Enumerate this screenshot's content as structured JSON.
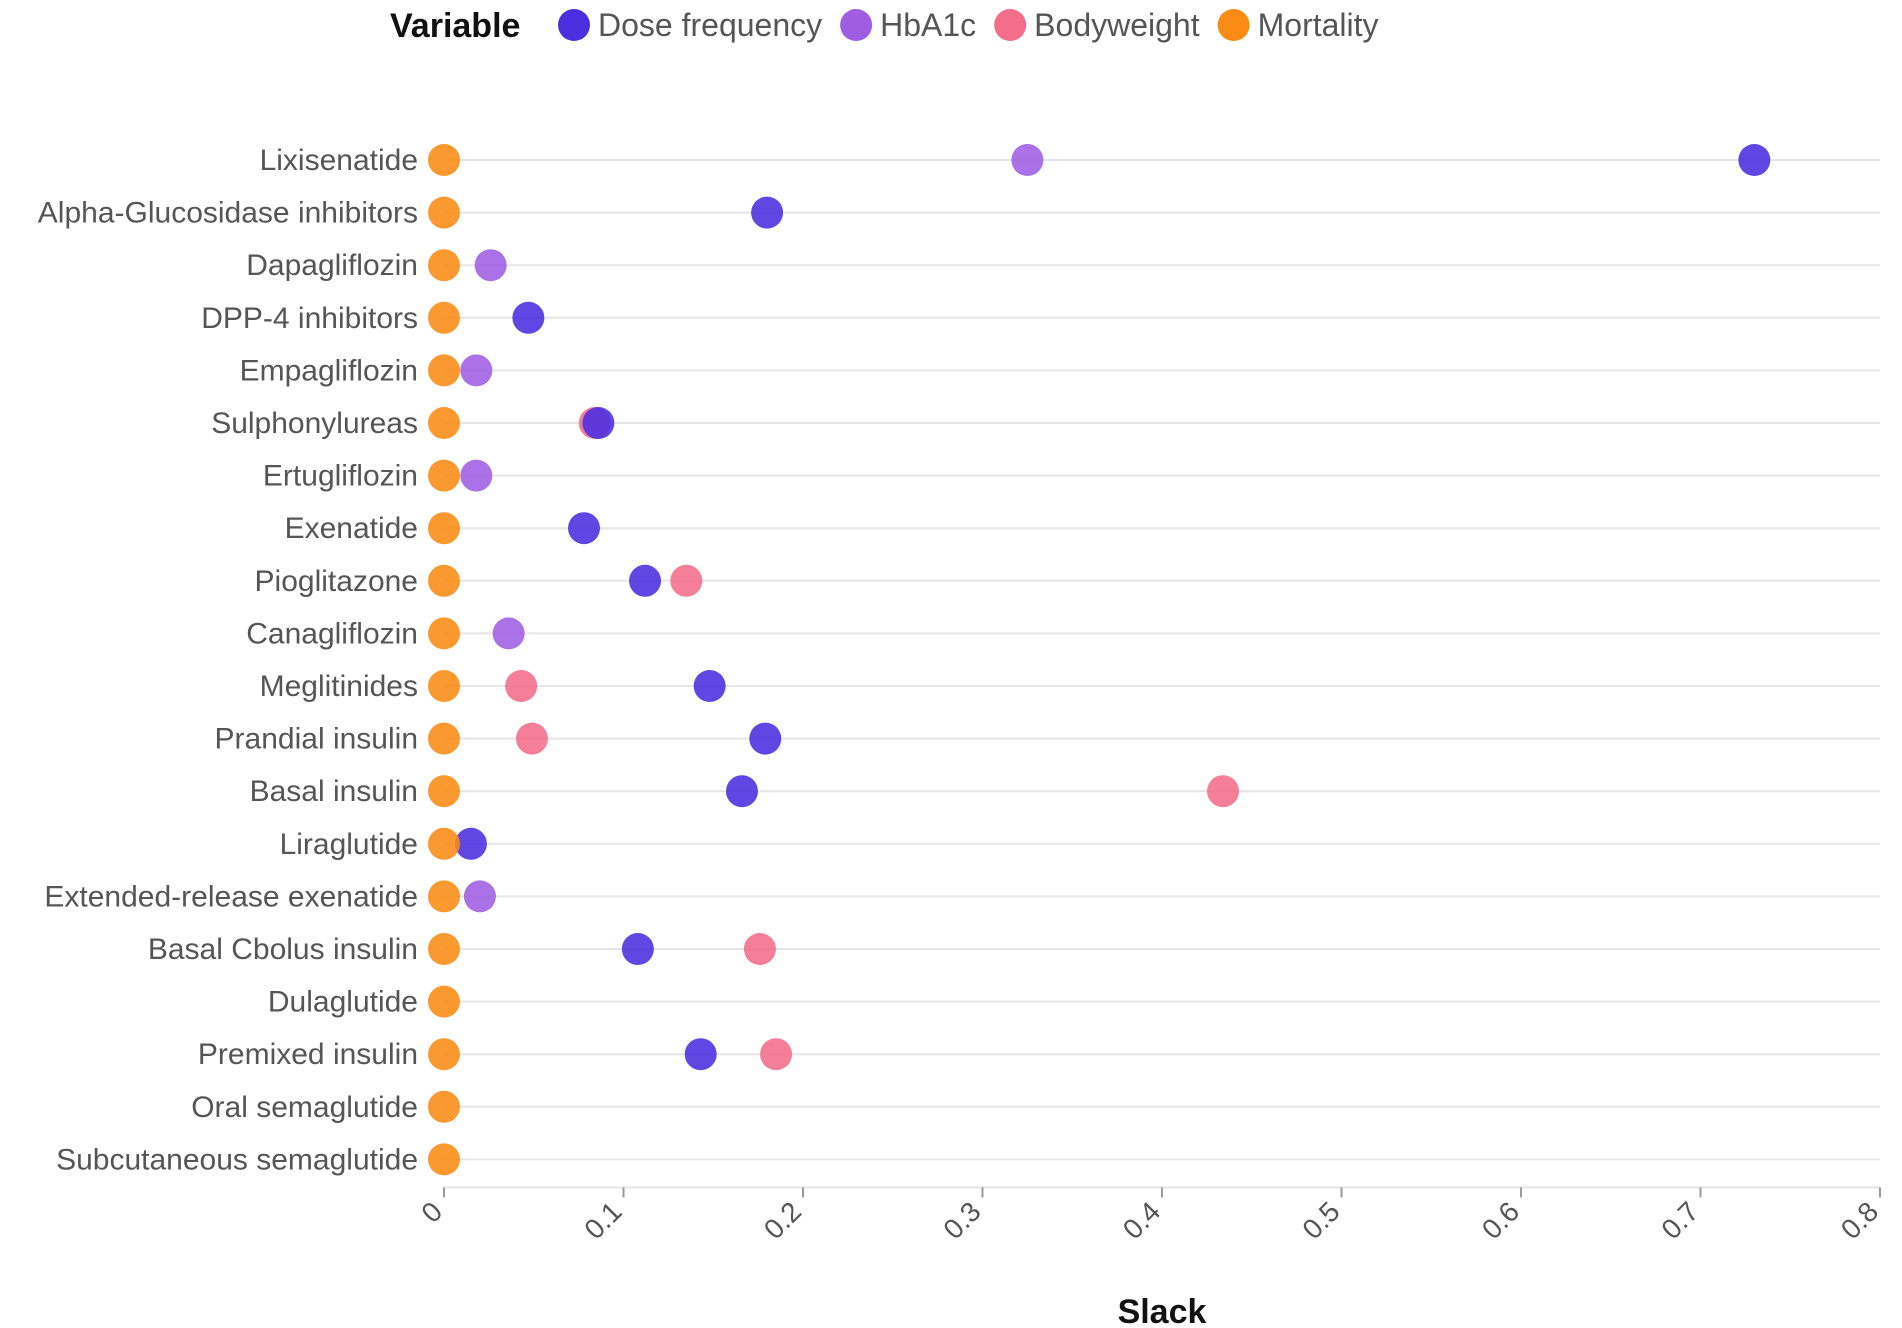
{
  "chart_data": {
    "type": "scatter",
    "orientation": "horizontal-dot",
    "title": "",
    "xlabel": "Slack",
    "ylabel": "",
    "xlim": [
      0,
      0.8
    ],
    "x_ticks": [
      0,
      0.1,
      0.2,
      0.3,
      0.4,
      0.5,
      0.6,
      0.7,
      0.8
    ],
    "x_tick_labels": [
      "0",
      "0.1",
      "0.2",
      "0.3",
      "0.4",
      "0.5",
      "0.6",
      "0.7",
      "0.8"
    ],
    "grid": true,
    "legend": {
      "title": "Variable",
      "placement": "top"
    },
    "categories": [
      "Lixisenatide",
      "Alpha-Glucosidase inhibitors",
      "Dapagliflozin",
      "DPP-4 inhibitors",
      "Empagliflozin",
      "Sulphonylureas",
      "Ertugliflozin",
      "Exenatide",
      "Pioglitazone",
      "Canagliflozin",
      "Meglitinides",
      "Prandial insulin",
      "Basal insulin",
      "Liraglutide",
      "Extended-release exenatide",
      "Basal Cbolus insulin",
      "Dulaglutide",
      "Premixed insulin",
      "Oral semaglutide",
      "Subcutaneous semaglutide"
    ],
    "series": [
      {
        "name": "Dose frequency",
        "color": "#4a2ee0",
        "values": [
          0.73,
          0.18,
          null,
          0.047,
          null,
          0.086,
          null,
          0.078,
          0.112,
          null,
          0.148,
          0.179,
          0.166,
          0.015,
          null,
          0.108,
          null,
          0.143,
          null,
          null
        ]
      },
      {
        "name": "HbA1c",
        "color": "#9f5de2",
        "values": [
          0.325,
          null,
          0.026,
          null,
          0.018,
          null,
          0.018,
          null,
          null,
          0.036,
          null,
          null,
          null,
          null,
          0.02,
          null,
          null,
          null,
          null,
          null
        ]
      },
      {
        "name": "Bodyweight",
        "color": "#f46d8a",
        "values": [
          null,
          null,
          null,
          null,
          null,
          0.084,
          null,
          null,
          0.135,
          null,
          0.043,
          0.049,
          0.434,
          null,
          null,
          0.176,
          null,
          0.185,
          null,
          null
        ]
      },
      {
        "name": "Mortality",
        "color": "#fb8b14",
        "values": [
          0,
          0,
          0,
          0,
          0,
          0,
          0,
          0,
          0,
          0,
          0,
          0,
          0,
          0,
          0,
          0,
          0,
          0,
          0,
          0
        ]
      }
    ]
  }
}
